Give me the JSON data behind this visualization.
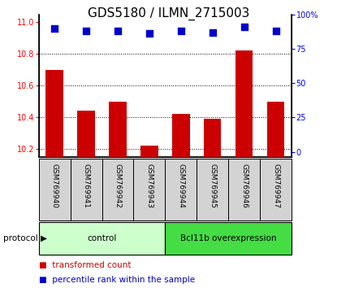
{
  "title": "GDS5180 / ILMN_2715003",
  "samples": [
    "GSM769940",
    "GSM769941",
    "GSM769942",
    "GSM769943",
    "GSM769944",
    "GSM769945",
    "GSM769946",
    "GSM769947"
  ],
  "transformed_counts": [
    10.7,
    10.44,
    10.5,
    10.22,
    10.42,
    10.39,
    10.82,
    10.5
  ],
  "percentile_ranks": [
    90,
    88,
    88,
    86,
    88,
    87,
    91,
    88
  ],
  "ylim_left": [
    10.15,
    11.05
  ],
  "ylim_right": [
    -3.75,
    100
  ],
  "yticks_left": [
    10.2,
    10.4,
    10.6,
    10.8,
    11.0
  ],
  "yticks_right": [
    0,
    25,
    50,
    75,
    100
  ],
  "ytick_right_labels": [
    "0",
    "25",
    "50",
    "75",
    "100%"
  ],
  "bar_color": "#cc0000",
  "dot_color": "#0000cc",
  "grid_color": "#000000",
  "protocol_groups": [
    {
      "label": "control",
      "start": 0,
      "end": 3,
      "color": "#ccffcc"
    },
    {
      "label": "Bcl11b overexpression",
      "start": 4,
      "end": 7,
      "color": "#44dd44"
    }
  ],
  "protocol_label": "protocol",
  "legend_bar_label": "transformed count",
  "legend_dot_label": "percentile rank within the sample",
  "bar_width": 0.55,
  "dot_size": 40,
  "tick_label_fontsize": 7,
  "title_fontsize": 11,
  "bar_bottom": 10.15
}
